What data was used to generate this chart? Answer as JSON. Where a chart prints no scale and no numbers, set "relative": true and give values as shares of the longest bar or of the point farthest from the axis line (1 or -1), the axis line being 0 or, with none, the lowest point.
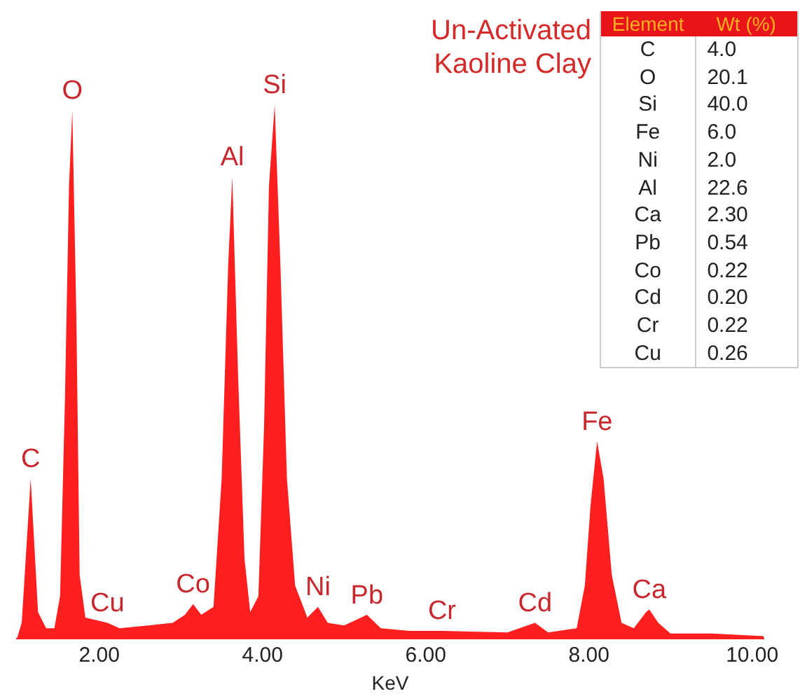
{
  "chart_data": [
    {
      "type": "area",
      "title": "Un-Activated Kaoline Clay",
      "xlabel": "KeV",
      "relative": true,
      "color": "#ff1f1f",
      "grid": false,
      "legend": false,
      "xlim": [
        0.99,
        10.14
      ],
      "xticks": [
        {
          "value": 2,
          "label": "2.00"
        },
        {
          "value": 4,
          "label": "4.00"
        },
        {
          "value": 6,
          "label": "6.00"
        },
        {
          "value": 8,
          "label": "8.00"
        },
        {
          "value": 10,
          "label": "10.00"
        }
      ],
      "x": [
        0.99,
        1.05,
        1.16,
        1.25,
        1.35,
        1.45,
        1.52,
        1.58,
        1.63,
        1.67,
        1.72,
        1.76,
        1.83,
        2.1,
        2.25,
        2.6,
        2.9,
        3.05,
        3.15,
        3.25,
        3.4,
        3.5,
        3.58,
        3.63,
        3.7,
        3.78,
        3.85,
        3.95,
        4.02,
        4.08,
        4.15,
        4.22,
        4.3,
        4.4,
        4.55,
        4.68,
        4.8,
        5.0,
        5.28,
        5.45,
        5.8,
        6.2,
        7.0,
        7.34,
        7.5,
        7.85,
        7.95,
        8.02,
        8.1,
        8.18,
        8.28,
        8.4,
        8.55,
        8.7,
        8.74,
        8.85,
        9.0,
        9.5,
        10.14
      ],
      "values": [
        0.0,
        0.03,
        0.3,
        0.05,
        0.02,
        0.02,
        0.08,
        0.45,
        0.85,
        0.99,
        0.6,
        0.12,
        0.04,
        0.03,
        0.02,
        0.025,
        0.03,
        0.045,
        0.065,
        0.045,
        0.06,
        0.3,
        0.7,
        0.865,
        0.5,
        0.15,
        0.05,
        0.08,
        0.4,
        0.85,
        1.0,
        0.7,
        0.3,
        0.1,
        0.04,
        0.06,
        0.03,
        0.025,
        0.045,
        0.02,
        0.015,
        0.015,
        0.012,
        0.03,
        0.012,
        0.02,
        0.1,
        0.25,
        0.37,
        0.3,
        0.12,
        0.03,
        0.02,
        0.05,
        0.055,
        0.03,
        0.01,
        0.01,
        0.005
      ],
      "annotations": [
        {
          "text": "C",
          "x": 1.16,
          "y": 0.3
        },
        {
          "text": "O",
          "x": 1.67,
          "y": 0.99
        },
        {
          "text": "Cu",
          "x": 2.1,
          "y": 0.03
        },
        {
          "text": "Co",
          "x": 3.15,
          "y": 0.065
        },
        {
          "text": "Al",
          "x": 3.63,
          "y": 0.865
        },
        {
          "text": "Si",
          "x": 4.15,
          "y": 1.0
        },
        {
          "text": "Ni",
          "x": 4.68,
          "y": 0.06
        },
        {
          "text": "Pb",
          "x": 5.28,
          "y": 0.045
        },
        {
          "text": "Cr",
          "x": 6.2,
          "y": 0.015
        },
        {
          "text": "Cd",
          "x": 7.34,
          "y": 0.03
        },
        {
          "text": "Fe",
          "x": 8.1,
          "y": 0.37
        },
        {
          "text": "Ca",
          "x": 8.74,
          "y": 0.055
        }
      ]
    },
    {
      "type": "other",
      "xlabel": "Element",
      "ylabel": "Wt (%)",
      "categories": [
        "C",
        "O",
        "Si",
        "Fe",
        "Ni",
        "Al",
        "Ca",
        "Pb",
        "Co",
        "Cd",
        "Cr",
        "Cu"
      ],
      "values": [
        4.0,
        20.1,
        40.0,
        6.0,
        2.0,
        22.6,
        2.3,
        0.54,
        0.22,
        0.2,
        0.22,
        0.26
      ],
      "value_labels": [
        "4.0",
        "20.1",
        "40.0",
        "6.0",
        "2.0",
        "22.6",
        "2.30",
        "0.54",
        "0.22",
        "0.20",
        "0.22",
        "0.26"
      ]
    }
  ]
}
